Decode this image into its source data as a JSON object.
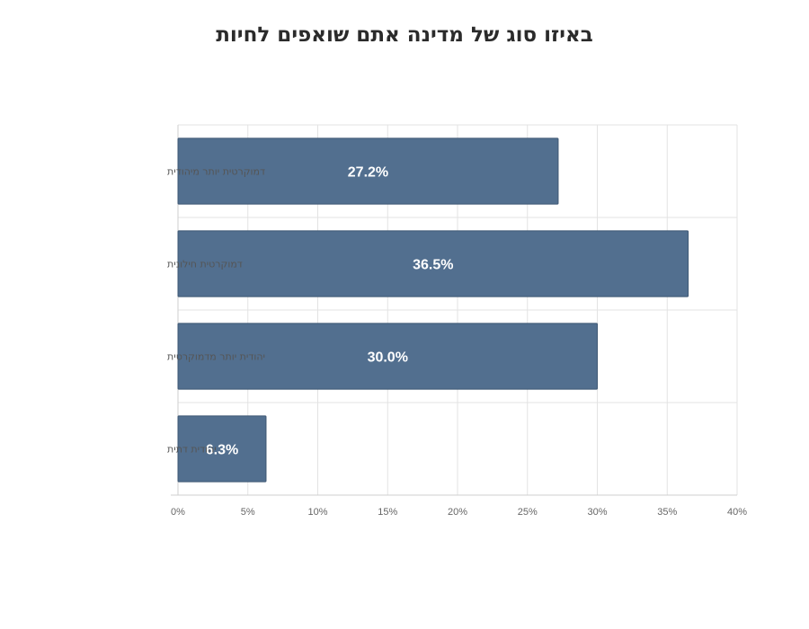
{
  "chart_data": {
    "type": "bar",
    "orientation": "horizontal",
    "title": "באיזו סוג של מדינה אתם שואפים לחיות",
    "categories": [
      "דמוקרטית יותר מיהודית",
      "דמוקרטית חילונית",
      "יהודית יותר מדמוקרטית",
      "יהודית דתית"
    ],
    "values": [
      27.2,
      36.5,
      30.0,
      6.3
    ],
    "data_labels": [
      "27.2%",
      "36.5%",
      "30.0%",
      "6.3%"
    ],
    "xlim": [
      0,
      40
    ],
    "x_ticks": [
      "0%",
      "5%",
      "10%",
      "15%",
      "20%",
      "25%",
      "30%",
      "35%",
      "40%"
    ],
    "grid": true,
    "bar_color": "#526f8f"
  }
}
